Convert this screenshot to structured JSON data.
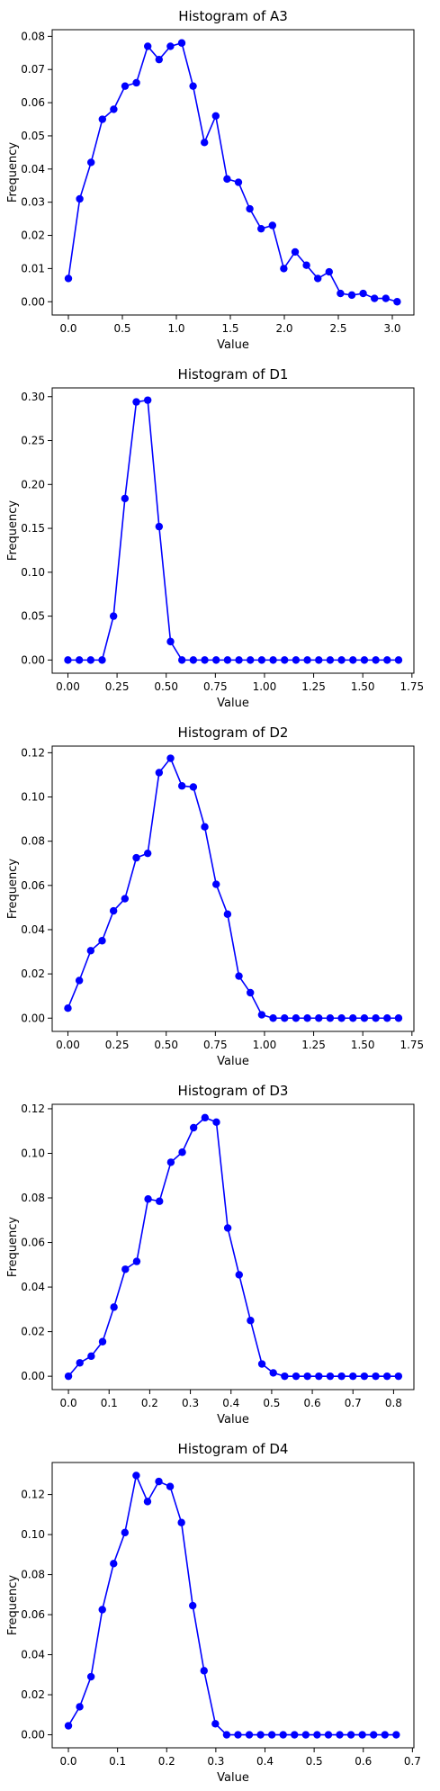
{
  "chart_data": [
    {
      "type": "line",
      "title": "Histogram of A3",
      "xlabel": "Value",
      "ylabel": "Frequency",
      "xlim": [
        -0.15,
        3.2
      ],
      "ylim": [
        -0.004,
        0.082
      ],
      "xticks": [
        0.0,
        0.5,
        1.0,
        1.5,
        2.0,
        2.5,
        3.0
      ],
      "xtick_labels": [
        "0.0",
        "0.5",
        "1.0",
        "1.5",
        "2.0",
        "2.5",
        "3.0"
      ],
      "yticks": [
        0.0,
        0.01,
        0.02,
        0.03,
        0.04,
        0.05,
        0.06,
        0.07,
        0.08
      ],
      "ytick_labels": [
        "0.00",
        "0.01",
        "0.02",
        "0.03",
        "0.04",
        "0.05",
        "0.06",
        "0.07",
        "0.08"
      ],
      "color": "#0000ff",
      "x": [
        0.0,
        0.105,
        0.21,
        0.315,
        0.42,
        0.525,
        0.63,
        0.735,
        0.84,
        0.945,
        1.05,
        1.155,
        1.26,
        1.365,
        1.47,
        1.575,
        1.68,
        1.785,
        1.89,
        1.995,
        2.1,
        2.205,
        2.31,
        2.415,
        2.52,
        2.625,
        2.73,
        2.835,
        2.94,
        3.045
      ],
      "y": [
        0.007,
        0.031,
        0.042,
        0.055,
        0.058,
        0.065,
        0.066,
        0.077,
        0.073,
        0.077,
        0.078,
        0.065,
        0.048,
        0.056,
        0.037,
        0.036,
        0.028,
        0.022,
        0.023,
        0.01,
        0.015,
        0.011,
        0.007,
        0.009,
        0.0025,
        0.002,
        0.0025,
        0.001,
        0.001,
        0.0
      ]
    },
    {
      "type": "line",
      "title": "Histogram of D1",
      "xlabel": "Value",
      "ylabel": "Frequency",
      "xlim": [
        -0.08,
        1.76
      ],
      "ylim": [
        -0.015,
        0.31
      ],
      "xticks": [
        0.0,
        0.25,
        0.5,
        0.75,
        1.0,
        1.25,
        1.5,
        1.75
      ],
      "xtick_labels": [
        "0.00",
        "0.25",
        "0.50",
        "0.75",
        "1.00",
        "1.25",
        "1.50",
        "1.75"
      ],
      "yticks": [
        0.0,
        0.05,
        0.1,
        0.15,
        0.2,
        0.25,
        0.3
      ],
      "ytick_labels": [
        "0.00",
        "0.05",
        "0.10",
        "0.15",
        "0.20",
        "0.25",
        "0.30"
      ],
      "color": "#0000ff",
      "x": [
        0.0,
        0.058,
        0.116,
        0.174,
        0.232,
        0.29,
        0.348,
        0.406,
        0.464,
        0.522,
        0.58,
        0.638,
        0.696,
        0.754,
        0.812,
        0.87,
        0.928,
        0.986,
        1.044,
        1.102,
        1.16,
        1.218,
        1.276,
        1.334,
        1.392,
        1.45,
        1.508,
        1.566,
        1.624,
        1.682
      ],
      "y": [
        0.0,
        0.0,
        0.0,
        0.0,
        0.05,
        0.184,
        0.294,
        0.296,
        0.152,
        0.021,
        0.0,
        0.0,
        0.0,
        0.0,
        0.0,
        0.0,
        0.0,
        0.0,
        0.0,
        0.0,
        0.0,
        0.0,
        0.0,
        0.0,
        0.0,
        0.0,
        0.0,
        0.0,
        0.0,
        0.0
      ]
    },
    {
      "type": "line",
      "title": "Histogram of D2",
      "xlabel": "Value",
      "ylabel": "Frequency",
      "xlim": [
        -0.08,
        1.76
      ],
      "ylim": [
        -0.006,
        0.123
      ],
      "xticks": [
        0.0,
        0.25,
        0.5,
        0.75,
        1.0,
        1.25,
        1.5,
        1.75
      ],
      "xtick_labels": [
        "0.00",
        "0.25",
        "0.50",
        "0.75",
        "1.00",
        "1.25",
        "1.50",
        "1.75"
      ],
      "yticks": [
        0.0,
        0.02,
        0.04,
        0.06,
        0.08,
        0.1,
        0.12
      ],
      "ytick_labels": [
        "0.00",
        "0.02",
        "0.04",
        "0.06",
        "0.08",
        "0.10",
        "0.12"
      ],
      "color": "#0000ff",
      "x": [
        0.0,
        0.058,
        0.116,
        0.174,
        0.232,
        0.29,
        0.348,
        0.406,
        0.464,
        0.522,
        0.58,
        0.638,
        0.696,
        0.754,
        0.812,
        0.87,
        0.928,
        0.986,
        1.044,
        1.102,
        1.16,
        1.218,
        1.276,
        1.334,
        1.392,
        1.45,
        1.508,
        1.566,
        1.624,
        1.682
      ],
      "y": [
        0.0045,
        0.017,
        0.0305,
        0.035,
        0.0485,
        0.054,
        0.0725,
        0.0745,
        0.111,
        0.1175,
        0.105,
        0.1045,
        0.0865,
        0.0605,
        0.047,
        0.019,
        0.0115,
        0.0015,
        0.0,
        0.0,
        0.0,
        0.0,
        0.0,
        0.0,
        0.0,
        0.0,
        0.0,
        0.0,
        0.0,
        0.0
      ]
    },
    {
      "type": "line",
      "title": "Histogram of D3",
      "xlabel": "Value",
      "ylabel": "Frequency",
      "xlim": [
        -0.04,
        0.85
      ],
      "ylim": [
        -0.006,
        0.122
      ],
      "xticks": [
        0.0,
        0.1,
        0.2,
        0.3,
        0.4,
        0.5,
        0.6,
        0.7,
        0.8
      ],
      "xtick_labels": [
        "0.0",
        "0.1",
        "0.2",
        "0.3",
        "0.4",
        "0.5",
        "0.6",
        "0.7",
        "0.8"
      ],
      "yticks": [
        0.0,
        0.02,
        0.04,
        0.06,
        0.08,
        0.1,
        0.12
      ],
      "ytick_labels": [
        "0.00",
        "0.02",
        "0.04",
        "0.06",
        "0.08",
        "0.10",
        "0.12"
      ],
      "color": "#0000ff",
      "x": [
        0.0,
        0.028,
        0.056,
        0.084,
        0.112,
        0.14,
        0.168,
        0.196,
        0.224,
        0.252,
        0.28,
        0.308,
        0.336,
        0.364,
        0.392,
        0.42,
        0.448,
        0.476,
        0.504,
        0.532,
        0.56,
        0.588,
        0.616,
        0.644,
        0.672,
        0.7,
        0.728,
        0.756,
        0.784,
        0.812
      ],
      "y": [
        0.0,
        0.006,
        0.009,
        0.0155,
        0.031,
        0.048,
        0.0515,
        0.0795,
        0.0785,
        0.096,
        0.1005,
        0.1115,
        0.116,
        0.114,
        0.0665,
        0.0455,
        0.025,
        0.0055,
        0.0015,
        0.0,
        0.0,
        0.0,
        0.0,
        0.0,
        0.0,
        0.0,
        0.0,
        0.0,
        0.0,
        0.0
      ]
    },
    {
      "type": "line",
      "title": "Histogram of D4",
      "xlabel": "Value",
      "ylabel": "Frequency",
      "xlim": [
        -0.033,
        0.703
      ],
      "ylim": [
        -0.0065,
        0.136
      ],
      "xticks": [
        0.0,
        0.1,
        0.2,
        0.3,
        0.4,
        0.5,
        0.6,
        0.7
      ],
      "xtick_labels": [
        "0.0",
        "0.1",
        "0.2",
        "0.3",
        "0.4",
        "0.5",
        "0.6",
        "0.7"
      ],
      "yticks": [
        0.0,
        0.02,
        0.04,
        0.06,
        0.08,
        0.1,
        0.12
      ],
      "ytick_labels": [
        "0.00",
        "0.02",
        "0.04",
        "0.06",
        "0.08",
        "0.10",
        "0.12"
      ],
      "color": "#0000ff",
      "x": [
        0.0,
        0.023,
        0.046,
        0.069,
        0.092,
        0.115,
        0.138,
        0.161,
        0.184,
        0.207,
        0.23,
        0.253,
        0.276,
        0.299,
        0.322,
        0.345,
        0.368,
        0.391,
        0.414,
        0.437,
        0.46,
        0.483,
        0.506,
        0.529,
        0.552,
        0.575,
        0.598,
        0.621,
        0.644,
        0.667
      ],
      "y": [
        0.0045,
        0.014,
        0.029,
        0.0625,
        0.0855,
        0.101,
        0.1295,
        0.1165,
        0.1265,
        0.124,
        0.106,
        0.0645,
        0.032,
        0.0055,
        0.0,
        0.0,
        0.0,
        0.0,
        0.0,
        0.0,
        0.0,
        0.0,
        0.0,
        0.0,
        0.0,
        0.0,
        0.0,
        0.0,
        0.0,
        0.0
      ]
    }
  ]
}
